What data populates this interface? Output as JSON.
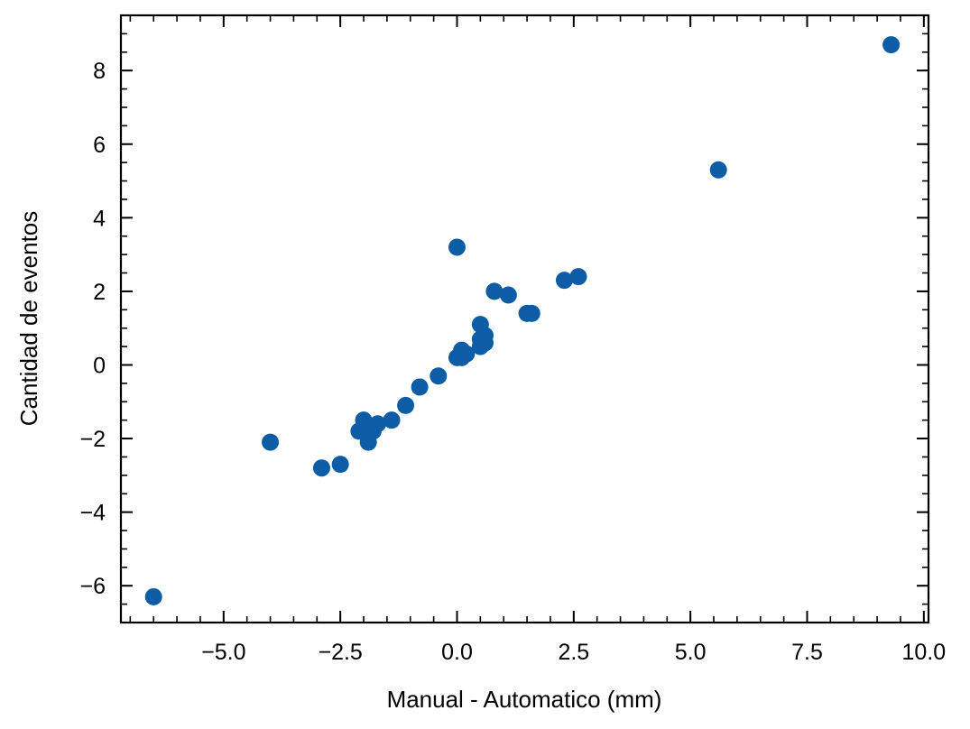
{
  "chart_data": {
    "type": "scatter",
    "title": "",
    "xlabel": "Manual - Automatico (mm)",
    "ylabel": "Cantidad de eventos",
    "xlim": [
      -7.2,
      10.1
    ],
    "ylim": [
      -7.0,
      9.5
    ],
    "x_ticks": [
      -5.0,
      -2.5,
      0.0,
      2.5,
      5.0,
      7.5,
      10.0
    ],
    "x_tick_labels": [
      "−5.0",
      "−2.5",
      "0.0",
      "2.5",
      "5.0",
      "7.5",
      "10.0"
    ],
    "x_minor_step": 0.5,
    "y_ticks": [
      -6,
      -4,
      -2,
      0,
      2,
      4,
      6,
      8
    ],
    "y_tick_labels": [
      "−6",
      "−4",
      "−2",
      "0",
      "2",
      "4",
      "6",
      "8"
    ],
    "y_minor_step": 0.5,
    "grid": false,
    "marker_color": "#0c5da5",
    "series": [
      {
        "points": [
          {
            "x": -6.5,
            "y": -6.3
          },
          {
            "x": -4.0,
            "y": -2.1
          },
          {
            "x": -2.9,
            "y": -2.8
          },
          {
            "x": -2.5,
            "y": -2.7
          },
          {
            "x": -2.1,
            "y": -1.8
          },
          {
            "x": -2.0,
            "y": -1.5
          },
          {
            "x": -1.9,
            "y": -2.1
          },
          {
            "x": -1.9,
            "y": -1.7
          },
          {
            "x": -1.8,
            "y": -1.8
          },
          {
            "x": -1.7,
            "y": -1.6
          },
          {
            "x": -1.4,
            "y": -1.5
          },
          {
            "x": -1.1,
            "y": -1.1
          },
          {
            "x": -0.8,
            "y": -0.6
          },
          {
            "x": -0.4,
            "y": -0.3
          },
          {
            "x": 0.0,
            "y": 3.2
          },
          {
            "x": 0.0,
            "y": 0.2
          },
          {
            "x": 0.1,
            "y": 0.2
          },
          {
            "x": 0.1,
            "y": 0.4
          },
          {
            "x": 0.2,
            "y": 0.3
          },
          {
            "x": 0.5,
            "y": 1.1
          },
          {
            "x": 0.5,
            "y": 0.7
          },
          {
            "x": 0.5,
            "y": 0.5
          },
          {
            "x": 0.6,
            "y": 0.8
          },
          {
            "x": 0.6,
            "y": 0.6
          },
          {
            "x": 0.8,
            "y": 2.0
          },
          {
            "x": 1.1,
            "y": 1.9
          },
          {
            "x": 1.5,
            "y": 1.4
          },
          {
            "x": 1.6,
            "y": 1.4
          },
          {
            "x": 2.3,
            "y": 2.3
          },
          {
            "x": 2.6,
            "y": 2.4
          },
          {
            "x": 5.6,
            "y": 5.3
          },
          {
            "x": 9.3,
            "y": 8.7
          }
        ]
      }
    ]
  }
}
